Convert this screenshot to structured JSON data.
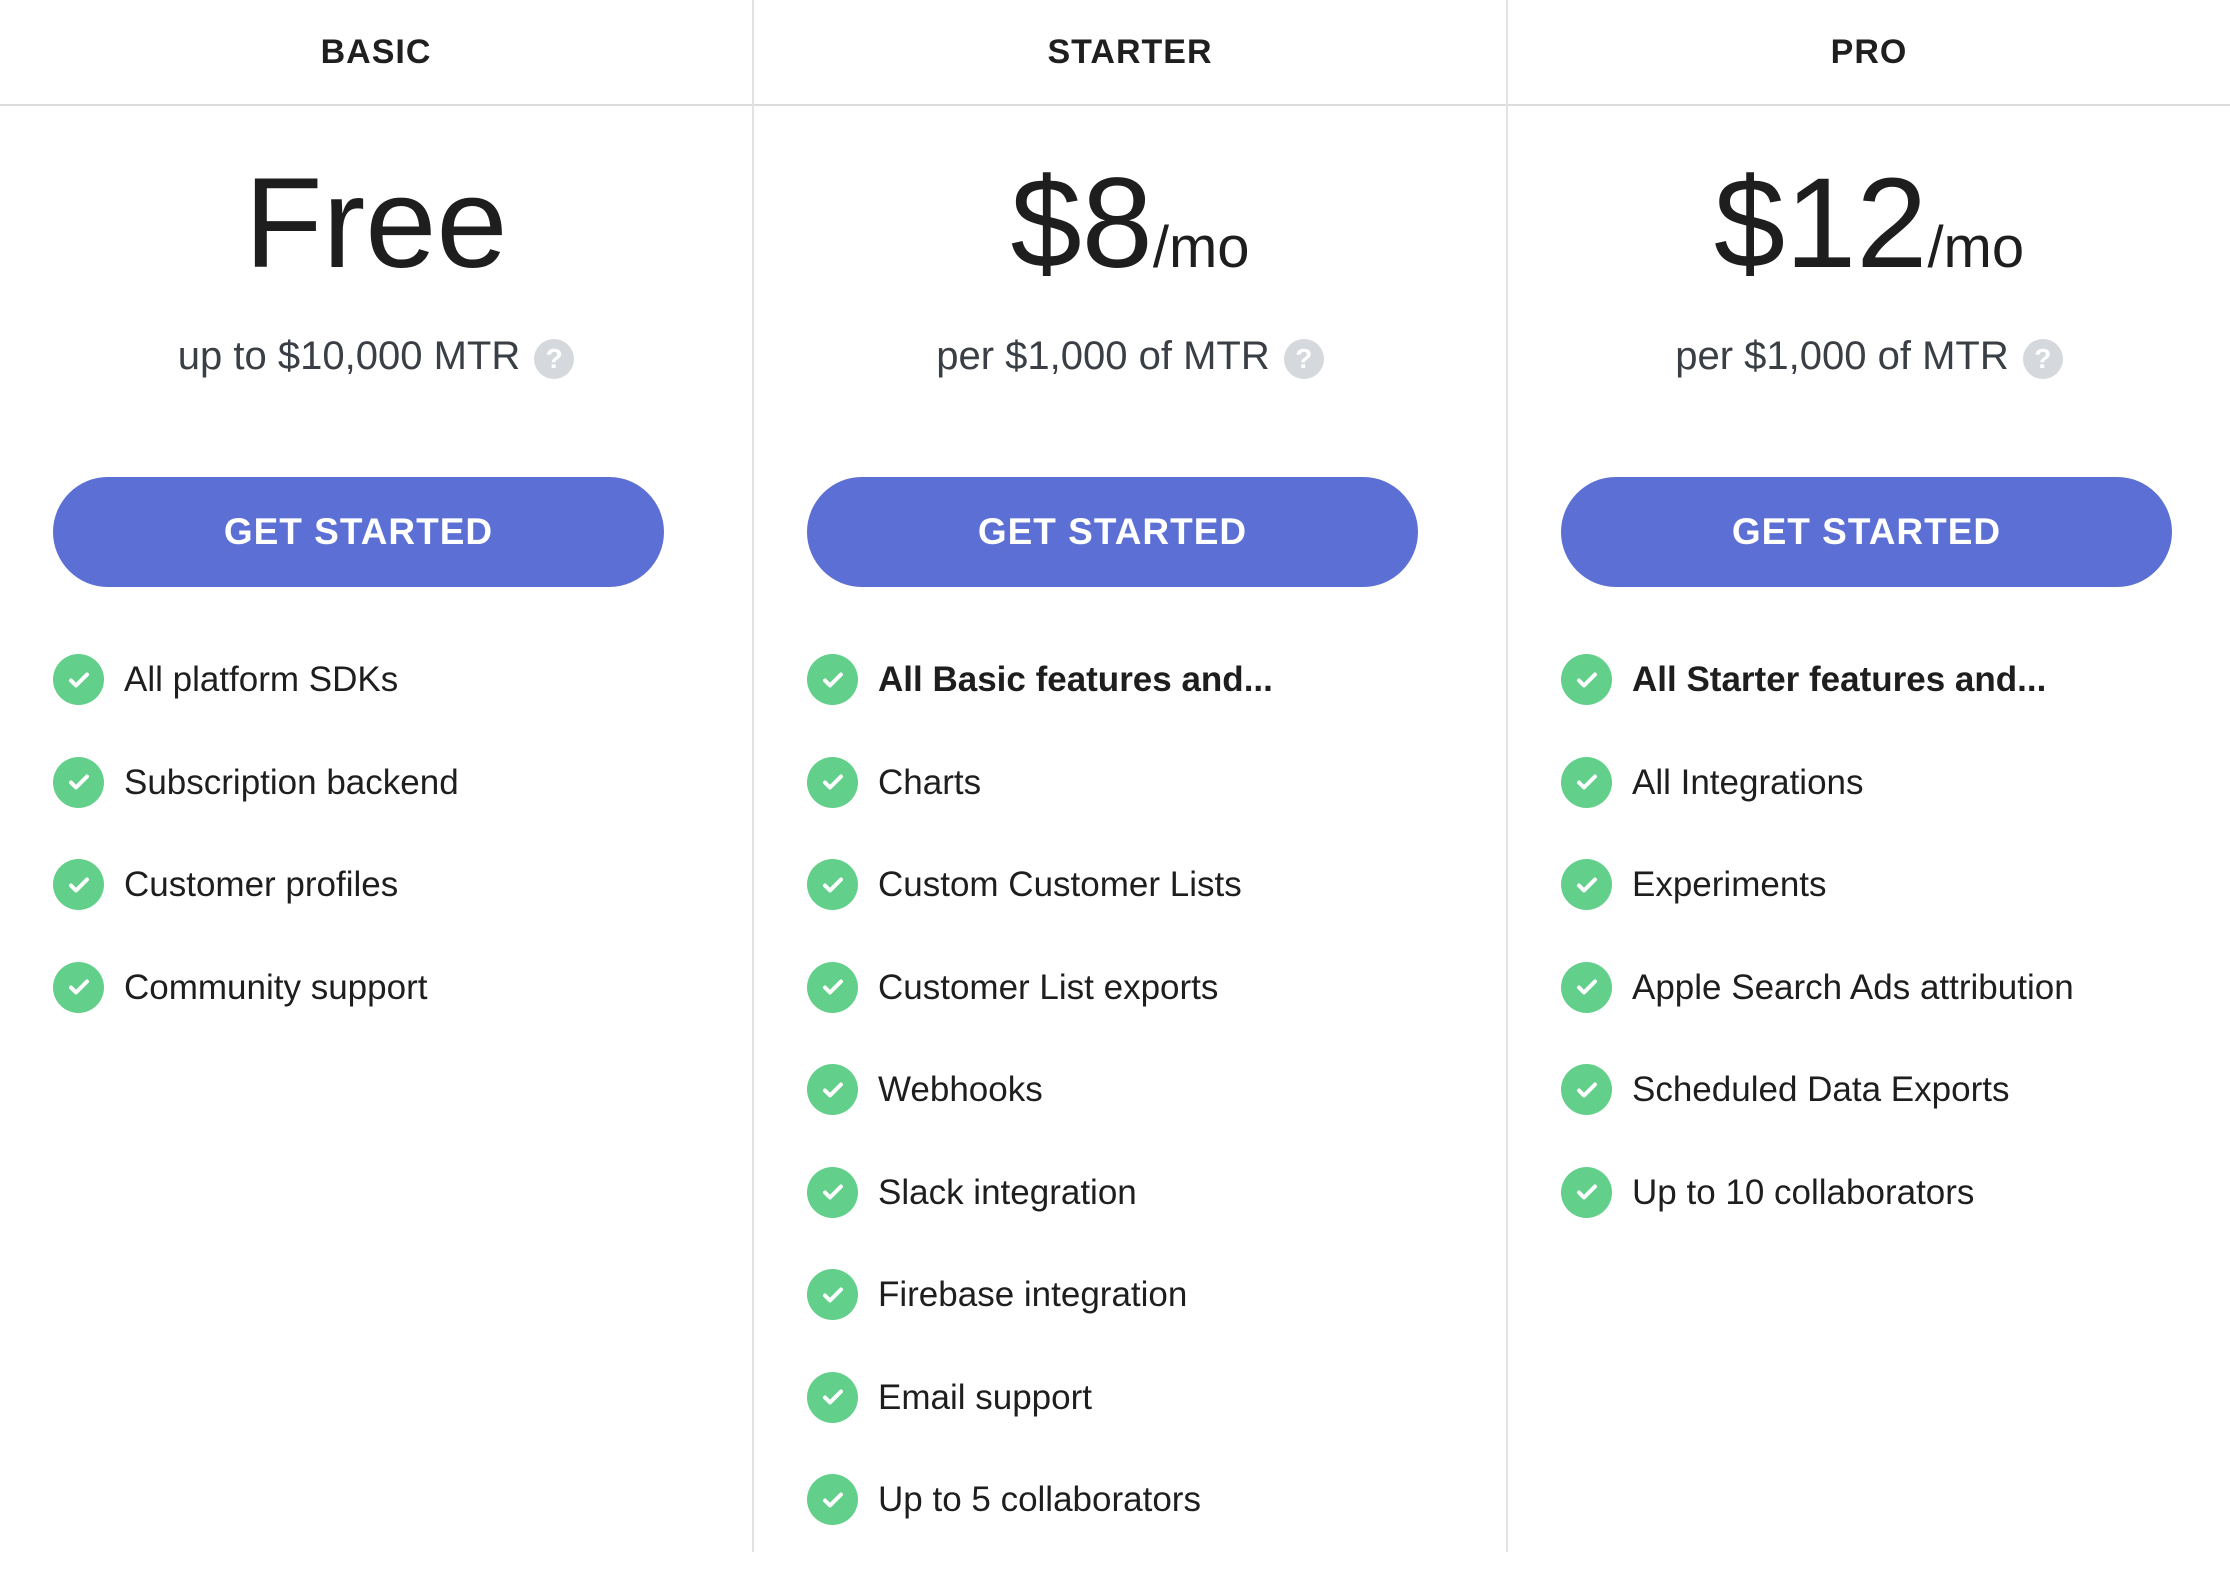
{
  "colors": {
    "button": "#5c6fd4",
    "check": "#62cf8a",
    "help": "#d5d8dc"
  },
  "plans": [
    {
      "name": "BASIC",
      "price": "Free",
      "period": "",
      "subtitle": "up to $10,000 MTR",
      "help": "?",
      "cta": "GET STARTED",
      "features": [
        "All platform SDKs",
        "Subscription backend",
        "Customer profiles",
        "Community support"
      ],
      "bold_first": false
    },
    {
      "name": "STARTER",
      "price": "$8",
      "period": "/mo",
      "subtitle": "per $1,000 of MTR",
      "help": "?",
      "cta": "GET STARTED",
      "features": [
        "All Basic features and...",
        "Charts",
        "Custom Customer Lists",
        "Customer List exports",
        "Webhooks",
        "Slack integration",
        "Firebase integration",
        "Email support",
        "Up to 5 collaborators"
      ],
      "bold_first": true
    },
    {
      "name": "PRO",
      "price": "$12",
      "period": "/mo",
      "subtitle": "per $1,000 of MTR",
      "help": "?",
      "cta": "GET STARTED",
      "features": [
        "All Starter features and...",
        "All Integrations",
        "Experiments",
        "Apple Search Ads attribution",
        "Scheduled Data Exports",
        "Up to 10 collaborators"
      ],
      "bold_first": true
    }
  ]
}
